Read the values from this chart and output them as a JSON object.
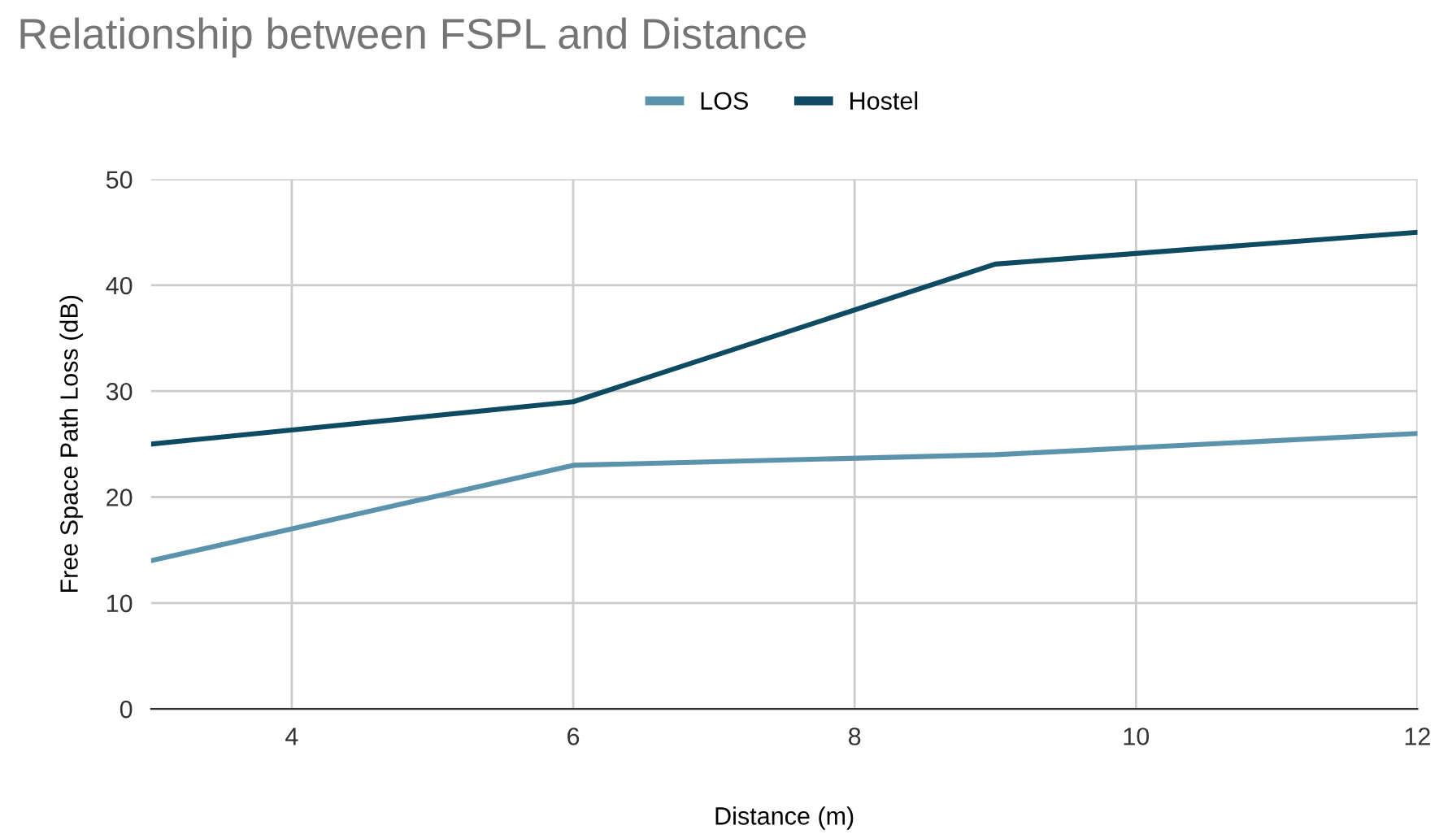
{
  "chart_data": {
    "type": "line",
    "title": "Relationship between FSPL and Distance",
    "xlabel": "Distance (m)",
    "ylabel": "Free Space Path Loss (dB)",
    "x": [
      3,
      6,
      9,
      12
    ],
    "series": [
      {
        "name": "LOS",
        "color": "#5b93ad",
        "values": [
          14,
          23,
          24,
          26
        ]
      },
      {
        "name": "Hostel",
        "color": "#0e4a62",
        "values": [
          25,
          29,
          42,
          45
        ]
      }
    ],
    "xlim": [
      3,
      12
    ],
    "xticks": [
      4,
      6,
      8,
      10,
      12
    ],
    "ylim": [
      0,
      50
    ],
    "yticks": [
      0,
      10,
      20,
      30,
      40,
      50
    ],
    "grid": true,
    "legend": "top",
    "marker": "none",
    "line_style": "solid"
  }
}
